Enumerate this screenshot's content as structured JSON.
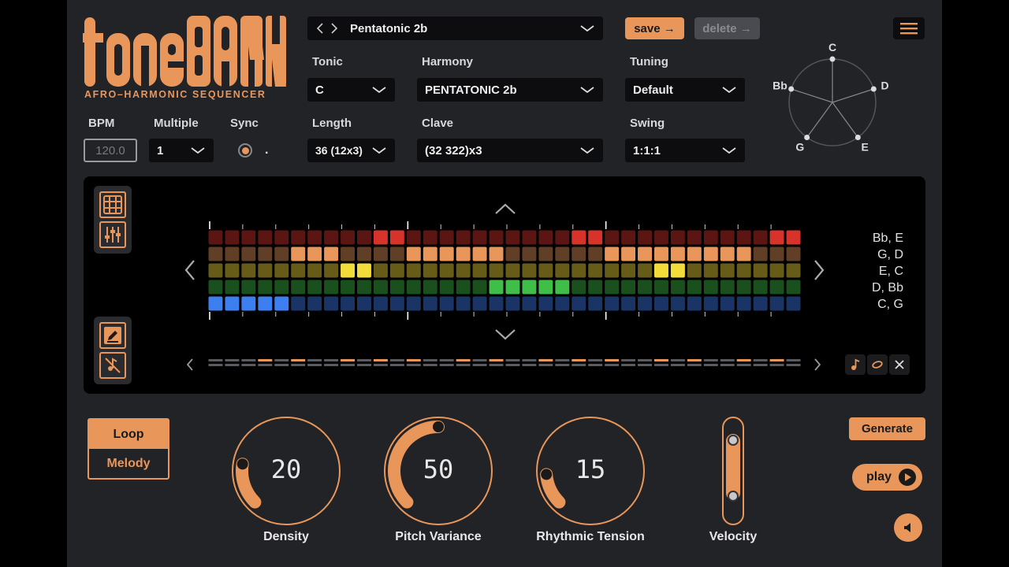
{
  "app": {
    "logo_text": "TONEBANK",
    "subtitle": "AFRO–HARMONIC SEQUENCER"
  },
  "preset": {
    "name": "Pentatonic 2b",
    "save_label": "save →",
    "delete_label": "delete →"
  },
  "controls": {
    "bpm": {
      "label": "BPM",
      "value": "120.0"
    },
    "multiple": {
      "label": "Multiple",
      "value": "1"
    },
    "sync": {
      "label": "Sync",
      "suffix": "."
    },
    "tonic": {
      "label": "Tonic",
      "value": "C"
    },
    "harmony": {
      "label": "Harmony",
      "value": "PENTATONIC 2b"
    },
    "tuning": {
      "label": "Tuning",
      "value": "Default"
    },
    "length": {
      "label": "Length",
      "value": "36 (12x3)"
    },
    "clave": {
      "label": "Clave",
      "value": "(32 322)x3"
    },
    "swing": {
      "label": "Swing",
      "value": "1:1:1"
    }
  },
  "pitch_wheel": [
    "C",
    "D",
    "E",
    "G",
    "Bb"
  ],
  "chords": [
    "Bb, E",
    "G, D",
    "E, C",
    "D, Bb",
    "C, G"
  ],
  "sequencer": {
    "steps": 36,
    "rows": [
      {
        "color": "#d8332a",
        "active": [
          10,
          11,
          22,
          23,
          34,
          35
        ]
      },
      {
        "color": "#e8965a",
        "active": [
          5,
          6,
          7,
          12,
          13,
          14,
          15,
          16,
          17,
          24,
          25,
          26,
          27,
          28,
          29,
          30,
          31,
          32
        ]
      },
      {
        "color": "#f2dc3a",
        "active": [
          8,
          9,
          27,
          28
        ]
      },
      {
        "color": "#3fbf47",
        "active": [
          17,
          18,
          19,
          20,
          21
        ]
      },
      {
        "color": "#3d7ff0",
        "active": [
          0,
          1,
          2,
          3,
          4
        ]
      }
    ],
    "accent_steps": [
      3,
      5,
      8,
      10,
      12,
      15,
      17,
      20,
      22,
      24,
      27,
      29,
      32,
      34
    ]
  },
  "mode": {
    "loop_label": "Loop",
    "melody_label": "Melody",
    "selected": "Loop"
  },
  "knobs": [
    {
      "label": "Density",
      "value": "20"
    },
    {
      "label": "Pitch Variance",
      "value": "50"
    },
    {
      "label": "Rhythmic Tension",
      "value": "15"
    }
  ],
  "velocity": {
    "label": "Velocity"
  },
  "actions": {
    "generate_label": "Generate",
    "play_label": "play"
  },
  "colors": {
    "accent": "#e8965a",
    "background": "#222327",
    "panel": "#000000"
  }
}
